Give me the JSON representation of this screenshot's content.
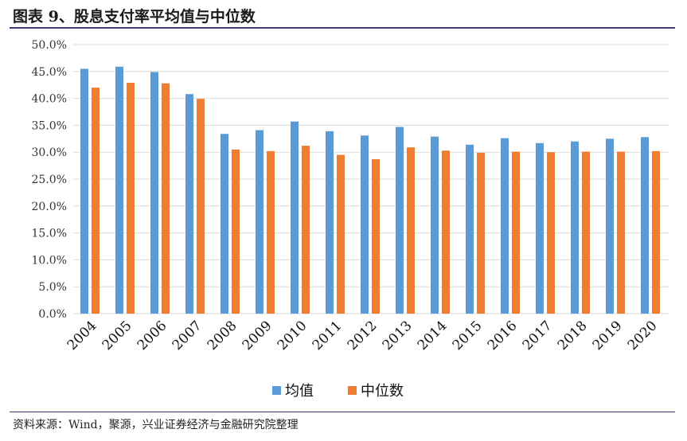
{
  "title": "图表 9、股息支付率平均值与中位数",
  "source": "资料来源：Wind，聚源，兴业证券经济与金融研究院整理",
  "colors": {
    "mean": "#5b9bd5",
    "median": "#ed7d31"
  },
  "chart_data": {
    "type": "bar",
    "title": "",
    "xlabel": "",
    "ylabel": "",
    "ylim": [
      0,
      50
    ],
    "yticks": [
      "0.0%",
      "5.0%",
      "10.0%",
      "15.0%",
      "20.0%",
      "25.0%",
      "30.0%",
      "35.0%",
      "40.0%",
      "45.0%",
      "50.0%"
    ],
    "categories": [
      "2004",
      "2005",
      "2006",
      "2007",
      "2008",
      "2009",
      "2010",
      "2011",
      "2012",
      "2013",
      "2014",
      "2015",
      "2016",
      "2017",
      "2018",
      "2019",
      "2020"
    ],
    "series": [
      {
        "name": "均值",
        "values": [
          45.5,
          45.9,
          44.9,
          40.8,
          33.4,
          34.1,
          35.7,
          33.9,
          33.1,
          34.7,
          32.9,
          31.4,
          32.6,
          31.7,
          32.0,
          32.5,
          32.8
        ]
      },
      {
        "name": "中位数",
        "values": [
          42.0,
          42.9,
          42.8,
          39.9,
          30.5,
          30.2,
          31.2,
          29.5,
          28.7,
          30.9,
          30.3,
          29.9,
          30.1,
          30.0,
          30.1,
          30.1,
          30.2
        ]
      }
    ],
    "grid": true,
    "legend": "bottom"
  }
}
